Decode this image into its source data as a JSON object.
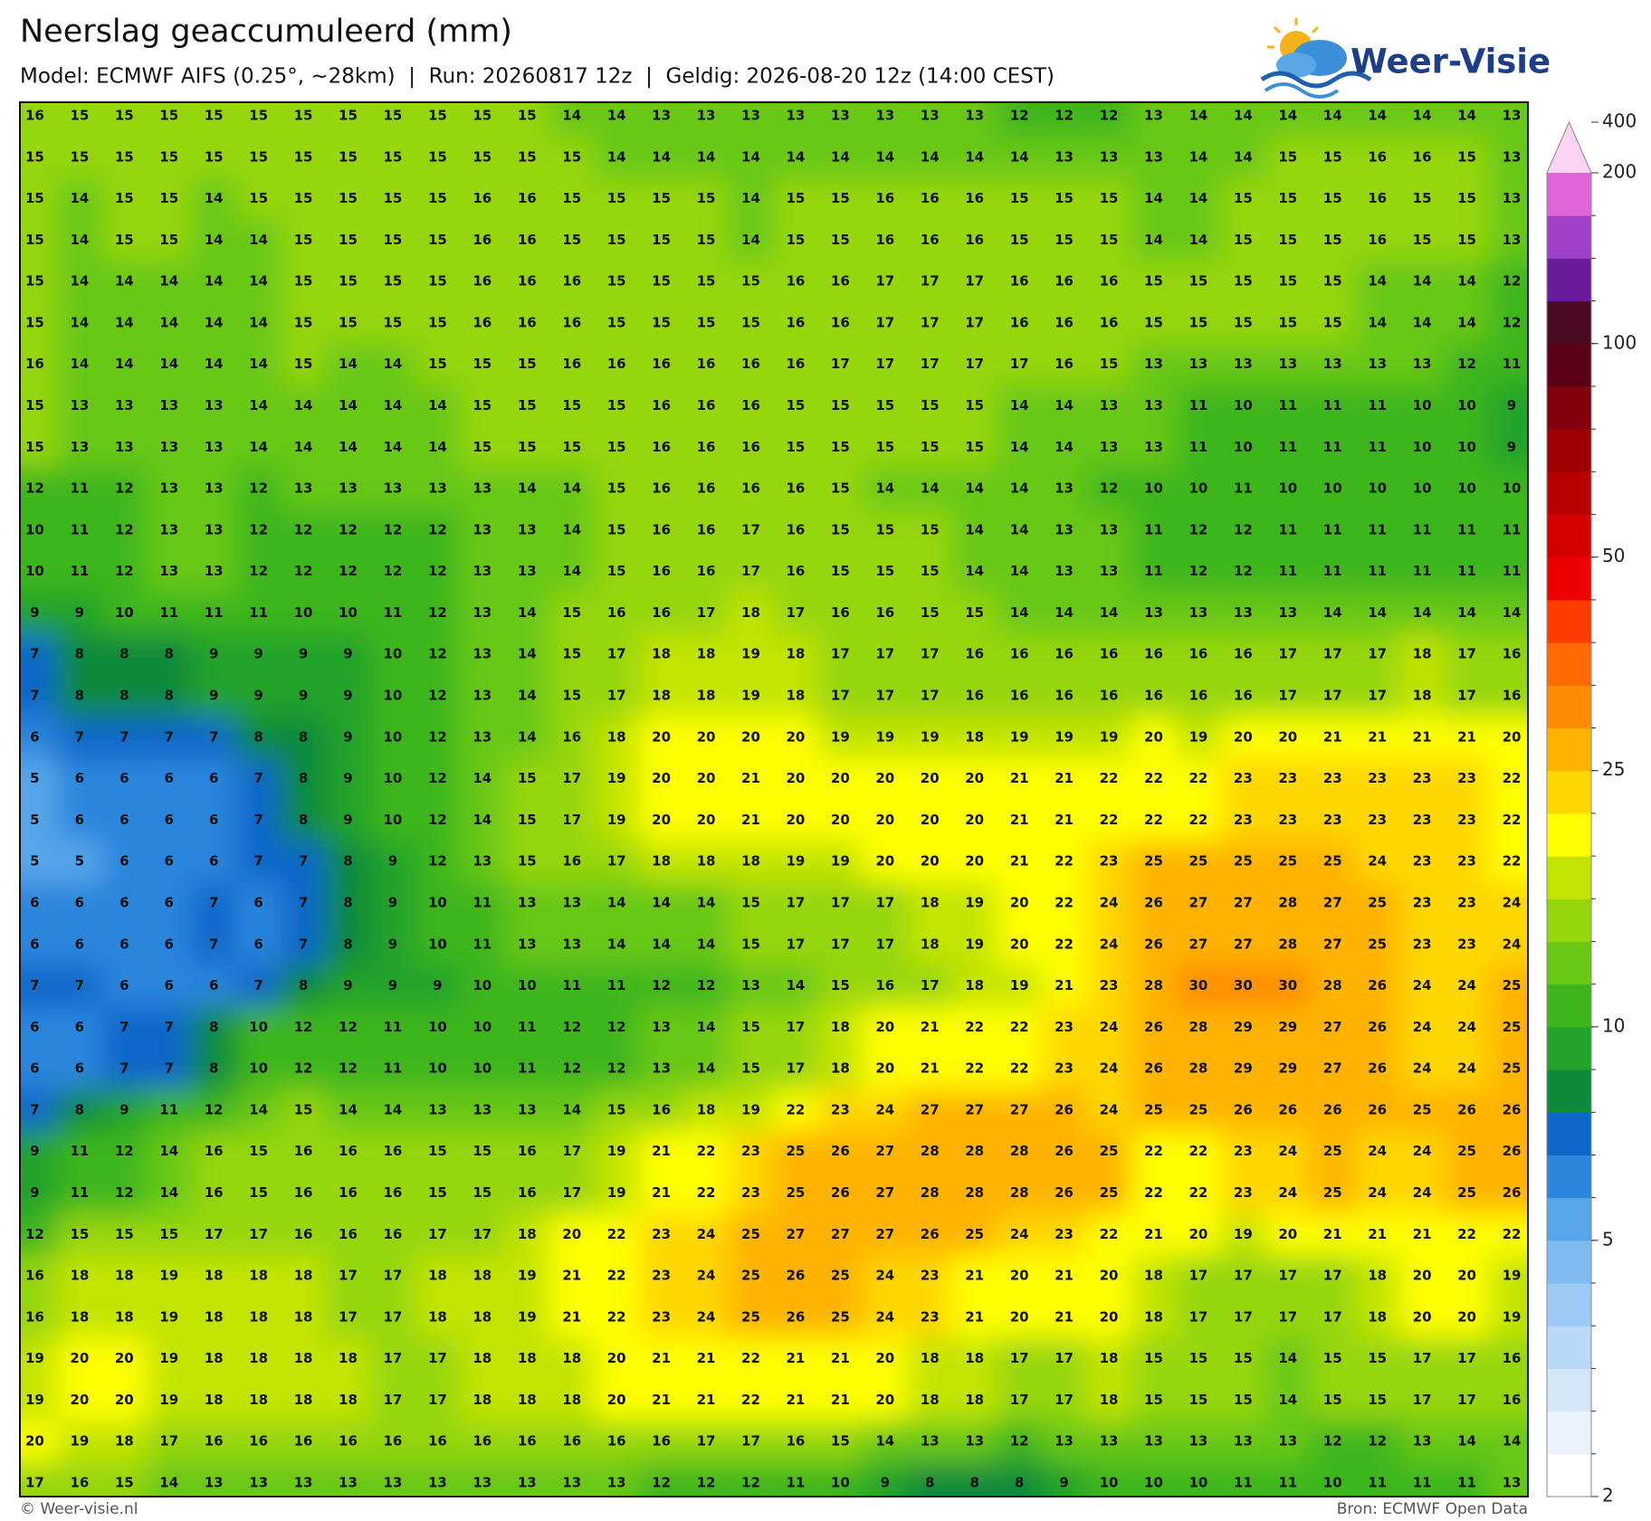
{
  "header": {
    "title": "Neerslag geaccumuleerd (mm)",
    "subtitle": "Model: ECMWF AIFS (0.25°, ~28km)  |  Run: 20260817 12z  |  Geldig: 2026-08-20 12z (14:00 CEST)"
  },
  "logo": {
    "text": "Weer-Visie"
  },
  "grid": {
    "values": [
      [
        16,
        15,
        15,
        15,
        15,
        15,
        15,
        15,
        15,
        15,
        15,
        15,
        14,
        14,
        13,
        13,
        13,
        13,
        13,
        13,
        13,
        13,
        12,
        12,
        12,
        13,
        14,
        14,
        14,
        14,
        14,
        14,
        14,
        13
      ],
      [
        15,
        15,
        15,
        15,
        15,
        15,
        15,
        15,
        15,
        15,
        15,
        15,
        15,
        14,
        14,
        14,
        14,
        14,
        14,
        14,
        14,
        14,
        14,
        13,
        13,
        13,
        14,
        14,
        15,
        15,
        16,
        16,
        15,
        13
      ],
      [
        15,
        14,
        15,
        15,
        14,
        15,
        15,
        15,
        15,
        15,
        16,
        16,
        15,
        15,
        15,
        15,
        14,
        15,
        15,
        16,
        16,
        16,
        15,
        15,
        15,
        14,
        14,
        15,
        15,
        15,
        16,
        15,
        15,
        13
      ],
      [
        15,
        14,
        15,
        15,
        14,
        14,
        15,
        15,
        15,
        15,
        16,
        16,
        15,
        15,
        15,
        15,
        14,
        15,
        15,
        16,
        16,
        16,
        15,
        15,
        15,
        14,
        14,
        15,
        15,
        15,
        16,
        15,
        15,
        13
      ],
      [
        15,
        14,
        14,
        14,
        14,
        14,
        15,
        15,
        15,
        15,
        16,
        16,
        16,
        15,
        15,
        15,
        15,
        16,
        16,
        17,
        17,
        17,
        16,
        16,
        16,
        15,
        15,
        15,
        15,
        15,
        14,
        14,
        14,
        12
      ],
      [
        15,
        14,
        14,
        14,
        14,
        14,
        15,
        15,
        15,
        15,
        16,
        16,
        16,
        15,
        15,
        15,
        15,
        16,
        16,
        17,
        17,
        17,
        16,
        16,
        16,
        15,
        15,
        15,
        15,
        15,
        14,
        14,
        14,
        12
      ],
      [
        16,
        14,
        14,
        14,
        14,
        14,
        15,
        14,
        14,
        15,
        15,
        15,
        16,
        16,
        16,
        16,
        16,
        16,
        17,
        17,
        17,
        17,
        17,
        16,
        15,
        13,
        13,
        13,
        13,
        13,
        13,
        13,
        12,
        11
      ],
      [
        15,
        13,
        13,
        13,
        13,
        14,
        14,
        14,
        14,
        14,
        15,
        15,
        15,
        15,
        16,
        16,
        16,
        15,
        15,
        15,
        15,
        15,
        14,
        14,
        13,
        13,
        11,
        10,
        11,
        11,
        11,
        10,
        10,
        9
      ],
      [
        15,
        13,
        13,
        13,
        13,
        14,
        14,
        14,
        14,
        14,
        15,
        15,
        15,
        15,
        16,
        16,
        16,
        15,
        15,
        15,
        15,
        15,
        14,
        14,
        13,
        13,
        11,
        10,
        11,
        11,
        11,
        10,
        10,
        9
      ],
      [
        12,
        11,
        12,
        13,
        13,
        12,
        13,
        13,
        13,
        13,
        13,
        14,
        14,
        15,
        16,
        16,
        16,
        16,
        15,
        14,
        14,
        14,
        14,
        13,
        12,
        10,
        10,
        11,
        10,
        10,
        10,
        10,
        10,
        10
      ],
      [
        10,
        11,
        12,
        13,
        13,
        12,
        12,
        12,
        12,
        12,
        13,
        13,
        14,
        15,
        16,
        16,
        17,
        16,
        15,
        15,
        15,
        14,
        14,
        13,
        13,
        11,
        12,
        12,
        11,
        11,
        11,
        11,
        11,
        11
      ],
      [
        10,
        11,
        12,
        13,
        13,
        12,
        12,
        12,
        12,
        12,
        13,
        13,
        14,
        15,
        16,
        16,
        17,
        16,
        15,
        15,
        15,
        14,
        14,
        13,
        13,
        11,
        12,
        12,
        11,
        11,
        11,
        11,
        11,
        11
      ],
      [
        9,
        9,
        10,
        11,
        11,
        11,
        10,
        10,
        11,
        12,
        13,
        14,
        15,
        16,
        16,
        17,
        18,
        17,
        16,
        16,
        15,
        15,
        14,
        14,
        14,
        13,
        13,
        13,
        13,
        14,
        14,
        14,
        14,
        14
      ],
      [
        7,
        8,
        8,
        8,
        9,
        9,
        9,
        9,
        10,
        12,
        13,
        14,
        15,
        17,
        18,
        18,
        19,
        18,
        17,
        17,
        17,
        16,
        16,
        16,
        16,
        16,
        16,
        16,
        17,
        17,
        17,
        18,
        17,
        16
      ],
      [
        7,
        8,
        8,
        8,
        9,
        9,
        9,
        9,
        10,
        12,
        13,
        14,
        15,
        17,
        18,
        18,
        19,
        18,
        17,
        17,
        17,
        16,
        16,
        16,
        16,
        16,
        16,
        16,
        17,
        17,
        17,
        18,
        17,
        16
      ],
      [
        6,
        7,
        7,
        7,
        7,
        8,
        8,
        9,
        10,
        12,
        13,
        14,
        16,
        18,
        20,
        20,
        20,
        20,
        19,
        19,
        19,
        18,
        19,
        19,
        19,
        20,
        19,
        20,
        20,
        21,
        21,
        21,
        21,
        20
      ],
      [
        5,
        6,
        6,
        6,
        6,
        7,
        8,
        9,
        10,
        12,
        14,
        15,
        17,
        19,
        20,
        20,
        21,
        20,
        20,
        20,
        20,
        20,
        21,
        21,
        22,
        22,
        22,
        23,
        23,
        23,
        23,
        23,
        23,
        22
      ],
      [
        5,
        6,
        6,
        6,
        6,
        7,
        8,
        9,
        10,
        12,
        14,
        15,
        17,
        19,
        20,
        20,
        21,
        20,
        20,
        20,
        20,
        20,
        21,
        21,
        22,
        22,
        22,
        23,
        23,
        23,
        23,
        23,
        23,
        22
      ],
      [
        5,
        5,
        6,
        6,
        6,
        7,
        7,
        8,
        9,
        12,
        13,
        15,
        16,
        17,
        18,
        18,
        18,
        19,
        19,
        20,
        20,
        20,
        21,
        22,
        23,
        25,
        25,
        25,
        25,
        25,
        24,
        23,
        23,
        22
      ],
      [
        6,
        6,
        6,
        6,
        7,
        6,
        7,
        8,
        9,
        10,
        11,
        13,
        13,
        14,
        14,
        14,
        15,
        17,
        17,
        17,
        18,
        19,
        20,
        22,
        24,
        26,
        27,
        27,
        28,
        27,
        25,
        23,
        23,
        24
      ],
      [
        6,
        6,
        6,
        6,
        7,
        6,
        7,
        8,
        9,
        10,
        11,
        13,
        13,
        14,
        14,
        14,
        15,
        17,
        17,
        17,
        18,
        19,
        20,
        22,
        24,
        26,
        27,
        27,
        28,
        27,
        25,
        23,
        23,
        24
      ],
      [
        7,
        7,
        6,
        6,
        6,
        7,
        8,
        9,
        9,
        9,
        10,
        10,
        11,
        11,
        12,
        12,
        13,
        14,
        15,
        16,
        17,
        18,
        19,
        21,
        23,
        28,
        30,
        30,
        30,
        28,
        26,
        24,
        24,
        25
      ],
      [
        6,
        6,
        7,
        7,
        8,
        10,
        12,
        12,
        11,
        10,
        10,
        11,
        12,
        12,
        13,
        14,
        15,
        17,
        18,
        20,
        21,
        22,
        22,
        23,
        24,
        26,
        28,
        29,
        29,
        27,
        26,
        24,
        24,
        25
      ],
      [
        6,
        6,
        7,
        7,
        8,
        10,
        12,
        12,
        11,
        10,
        10,
        11,
        12,
        12,
        13,
        14,
        15,
        17,
        18,
        20,
        21,
        22,
        22,
        23,
        24,
        26,
        28,
        29,
        29,
        27,
        26,
        24,
        24,
        25
      ],
      [
        7,
        8,
        9,
        11,
        12,
        14,
        15,
        14,
        14,
        13,
        13,
        13,
        14,
        15,
        16,
        18,
        19,
        22,
        23,
        24,
        27,
        27,
        27,
        26,
        24,
        25,
        25,
        26,
        26,
        26,
        26,
        25,
        26,
        26
      ],
      [
        9,
        11,
        12,
        14,
        16,
        15,
        16,
        16,
        16,
        15,
        15,
        16,
        17,
        19,
        21,
        22,
        23,
        25,
        26,
        27,
        28,
        28,
        28,
        26,
        25,
        22,
        22,
        23,
        24,
        25,
        24,
        24,
        25,
        26
      ],
      [
        9,
        11,
        12,
        14,
        16,
        15,
        16,
        16,
        16,
        15,
        15,
        16,
        17,
        19,
        21,
        22,
        23,
        25,
        26,
        27,
        28,
        28,
        28,
        26,
        25,
        22,
        22,
        23,
        24,
        25,
        24,
        24,
        25,
        26
      ],
      [
        12,
        15,
        15,
        15,
        17,
        17,
        16,
        16,
        16,
        17,
        17,
        18,
        20,
        22,
        23,
        24,
        25,
        27,
        27,
        27,
        26,
        25,
        24,
        23,
        22,
        21,
        20,
        19,
        20,
        21,
        21,
        21,
        22,
        22
      ],
      [
        16,
        18,
        18,
        19,
        18,
        18,
        18,
        17,
        17,
        18,
        18,
        19,
        21,
        22,
        23,
        24,
        25,
        26,
        25,
        24,
        23,
        21,
        20,
        21,
        20,
        18,
        17,
        17,
        17,
        17,
        18,
        20,
        20,
        19
      ],
      [
        16,
        18,
        18,
        19,
        18,
        18,
        18,
        17,
        17,
        18,
        18,
        19,
        21,
        22,
        23,
        24,
        25,
        26,
        25,
        24,
        23,
        21,
        20,
        21,
        20,
        18,
        17,
        17,
        17,
        17,
        18,
        20,
        20,
        19
      ],
      [
        19,
        20,
        20,
        19,
        18,
        18,
        18,
        18,
        17,
        17,
        18,
        18,
        18,
        20,
        21,
        21,
        22,
        21,
        21,
        20,
        18,
        18,
        17,
        17,
        18,
        15,
        15,
        15,
        14,
        15,
        15,
        17,
        17,
        16
      ],
      [
        19,
        20,
        20,
        19,
        18,
        18,
        18,
        18,
        17,
        17,
        18,
        18,
        18,
        20,
        21,
        21,
        22,
        21,
        21,
        20,
        18,
        18,
        17,
        17,
        18,
        15,
        15,
        15,
        14,
        15,
        15,
        17,
        17,
        16
      ],
      [
        20,
        19,
        18,
        17,
        16,
        16,
        16,
        16,
        16,
        16,
        16,
        16,
        16,
        16,
        16,
        17,
        17,
        16,
        15,
        14,
        13,
        13,
        12,
        13,
        13,
        13,
        13,
        13,
        13,
        12,
        12,
        13,
        14,
        14
      ],
      [
        17,
        16,
        15,
        14,
        13,
        13,
        13,
        13,
        13,
        13,
        13,
        13,
        13,
        13,
        12,
        12,
        12,
        11,
        10,
        9,
        8,
        8,
        8,
        9,
        10,
        10,
        10,
        11,
        11,
        10,
        11,
        11,
        11,
        13
      ]
    ]
  },
  "colorbar": {
    "levels": [
      2,
      2.5,
      3,
      3.5,
      4,
      4.5,
      5,
      6,
      7,
      8,
      9,
      10,
      12.5,
      15,
      17.5,
      20,
      22.5,
      25,
      30,
      35,
      40,
      45,
      50,
      60,
      70,
      80,
      90,
      100,
      125,
      150,
      175,
      200
    ],
    "colors": [
      "#ffffff",
      "#eaf3fc",
      "#d3e7f9",
      "#b8d9f7",
      "#9bcaf4",
      "#7fbbf0",
      "#58a6ea",
      "#2a86dd",
      "#0f66c9",
      "#0e8a3b",
      "#22a329",
      "#3db61c",
      "#68c814",
      "#95d60b",
      "#c3e402",
      "#ffff00",
      "#ffd700",
      "#ffb300",
      "#ff8c00",
      "#ff6a00",
      "#ff3c00",
      "#ee0000",
      "#d40000",
      "#b80000",
      "#9c0000",
      "#82000c",
      "#5c0018",
      "#4a0a22",
      "#6a1b9a",
      "#a040c8",
      "#e065d8"
    ],
    "extend_color": "#fcd3f2",
    "ticks": [
      2,
      5,
      10,
      25,
      50,
      100,
      200,
      400
    ]
  },
  "footer": {
    "left": "© Weer-visie.nl",
    "right": "Bron: ECMWF Open Data"
  }
}
